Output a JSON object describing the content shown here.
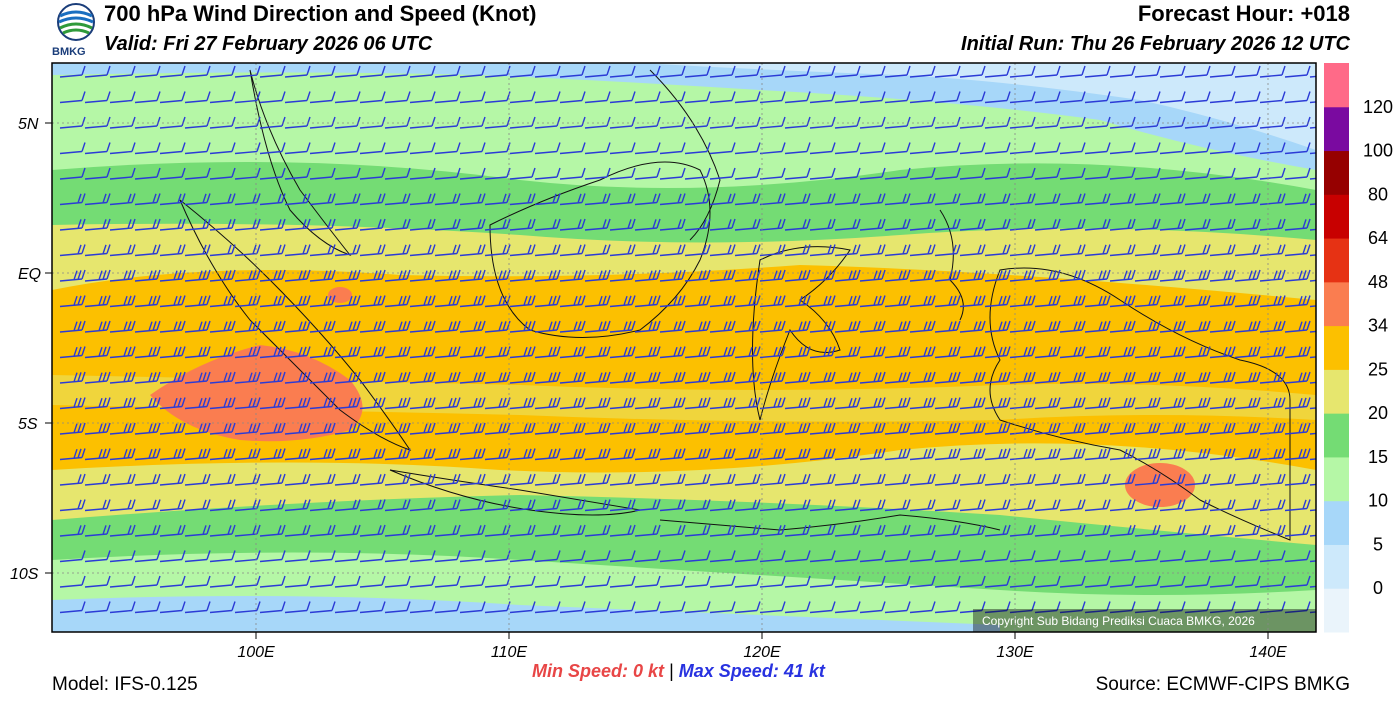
{
  "header": {
    "title": "700 hPa Wind Direction and Speed (Knot)",
    "valid": "Valid: Fri 27 February 2026 06 UTC",
    "forecast_hour": "Forecast Hour: +018",
    "initial_run": "Initial Run: Thu 26 February 2026 12 UTC"
  },
  "logo": {
    "text": "BMKG",
    "icon": "bmkg-logo-icon"
  },
  "map": {
    "lat_labels": [
      "5N",
      "EQ",
      "5S",
      "10S"
    ],
    "lon_labels": [
      "100E",
      "110E",
      "120E",
      "130E",
      "140E"
    ],
    "copyright": "Copyright Sub Bidang Prediksi Cuaca BMKG, 2026",
    "barb_color": "#2b3bd6"
  },
  "colorbar": {
    "levels": [
      "0",
      "5",
      "10",
      "15",
      "20",
      "25",
      "34",
      "48",
      "64",
      "80",
      "100",
      "120"
    ],
    "colors": [
      "#eaf4fb",
      "#cde9fb",
      "#a7d7f9",
      "#b5f7a6",
      "#74dc74",
      "#e6e66e",
      "#fcc000",
      "#fa7d50",
      "#e63214",
      "#c80000",
      "#960000",
      "#7a0aa0",
      "#ff6a88"
    ]
  },
  "footer": {
    "model": "Model: IFS-0.125",
    "source": "Source: ECMWF-CIPS BMKG",
    "min_speed_label": "Min Speed:",
    "min_speed_value": "0 kt",
    "separator": "|",
    "max_speed_label": "Max Speed:",
    "max_speed_value": "41 kt"
  }
}
